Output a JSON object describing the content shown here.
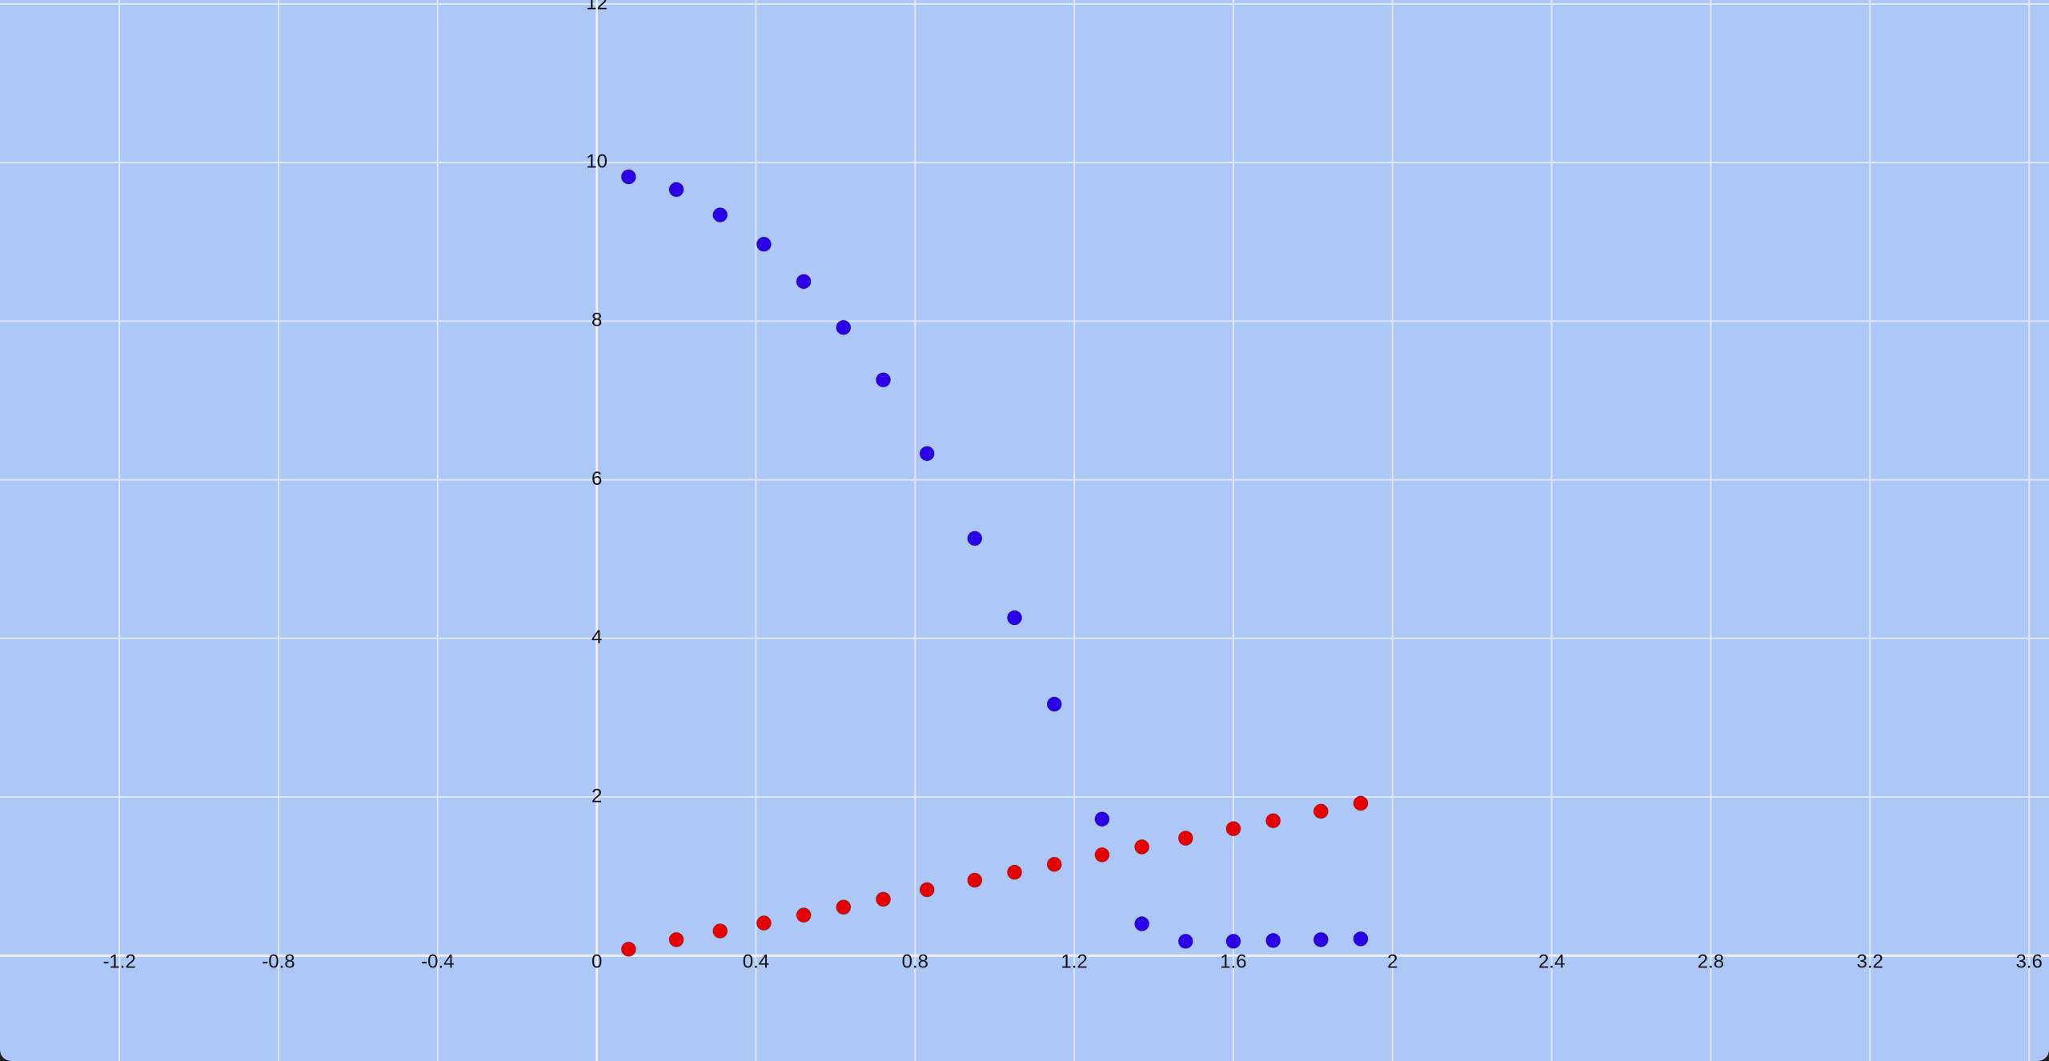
{
  "chart_data": {
    "type": "scatter",
    "title": "",
    "xlabel": "",
    "ylabel": "",
    "xlim": [
      -1.5,
      3.65
    ],
    "ylim": [
      -1.33,
      12.05
    ],
    "x_ticks": [
      -1.2,
      -0.8,
      -0.4,
      0,
      0.4,
      0.8,
      1.2,
      1.6,
      2,
      2.4,
      2.8,
      3.2,
      3.6
    ],
    "x_tick_labels": [
      "-1.2",
      "-0.8",
      "-0.4",
      "0",
      "0.4",
      "0.8",
      "1.2",
      "1.6",
      "2",
      "2.4",
      "2.8",
      "3.2",
      "3.6"
    ],
    "y_ticks": [
      2,
      4,
      6,
      8,
      10,
      12
    ],
    "y_tick_labels": [
      "2",
      "4",
      "6",
      "8",
      "10",
      "12"
    ],
    "grid": true,
    "background_color": "#adc8f6",
    "grid_color": "#dbe6fb",
    "series": [
      {
        "color": "#2b00e8",
        "points": [
          [
            0.08,
            9.82
          ],
          [
            0.2,
            9.66
          ],
          [
            0.31,
            9.34
          ],
          [
            0.42,
            8.97
          ],
          [
            0.52,
            8.5
          ],
          [
            0.62,
            7.92
          ],
          [
            0.72,
            7.26
          ],
          [
            0.83,
            6.33
          ],
          [
            0.95,
            5.26
          ],
          [
            1.05,
            4.26
          ],
          [
            1.15,
            3.17
          ],
          [
            1.27,
            1.72
          ],
          [
            1.37,
            0.4
          ],
          [
            1.48,
            0.18
          ],
          [
            1.6,
            0.18
          ],
          [
            1.7,
            0.19
          ],
          [
            1.82,
            0.2
          ],
          [
            1.92,
            0.21
          ]
        ]
      },
      {
        "color": "#e60000",
        "points": [
          [
            0.08,
            0.08
          ],
          [
            0.2,
            0.2
          ],
          [
            0.31,
            0.31
          ],
          [
            0.42,
            0.41
          ],
          [
            0.52,
            0.51
          ],
          [
            0.62,
            0.61
          ],
          [
            0.72,
            0.71
          ],
          [
            0.83,
            0.83
          ],
          [
            0.95,
            0.95
          ],
          [
            1.05,
            1.05
          ],
          [
            1.15,
            1.15
          ],
          [
            1.27,
            1.27
          ],
          [
            1.37,
            1.37
          ],
          [
            1.48,
            1.48
          ],
          [
            1.6,
            1.6
          ],
          [
            1.7,
            1.7
          ],
          [
            1.82,
            1.82
          ],
          [
            1.92,
            1.92
          ]
        ]
      }
    ]
  }
}
